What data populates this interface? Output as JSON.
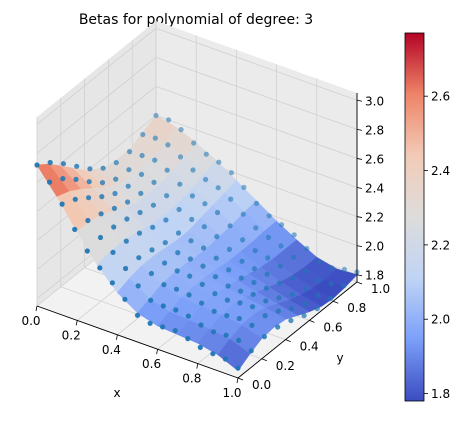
{
  "chart_data": {
    "type": "surface3d",
    "title": "Betas for polynomial of degree: 3",
    "xlabel": "x",
    "ylabel": "y",
    "xlim": [
      0.0,
      1.0
    ],
    "ylim": [
      0.0,
      1.0
    ],
    "zlim": [
      1.75,
      3.05
    ],
    "x_ticks": [
      "0.0",
      "0.2",
      "0.4",
      "0.6",
      "0.8",
      "1.0"
    ],
    "y_ticks": [
      "0.0",
      "0.2",
      "0.4",
      "0.6",
      "0.8",
      "1.0"
    ],
    "z_ticks": [
      "1.8",
      "2.0",
      "2.2",
      "2.4",
      "2.6",
      "2.8",
      "3.0"
    ],
    "x_tick_values": [
      0.0,
      0.2,
      0.4,
      0.6,
      0.8,
      1.0
    ],
    "y_tick_values": [
      0.0,
      0.2,
      0.4,
      0.6,
      0.8,
      1.0
    ],
    "z_tick_values": [
      1.8,
      2.0,
      2.2,
      2.4,
      2.6,
      2.8,
      3.0
    ],
    "grid": true,
    "colormap": "coolwarm",
    "colormap_stops": [
      "#3b4cc0",
      "#7b9ff9",
      "#c0d4f5",
      "#dddcdc",
      "#f2cbb7",
      "#ee8468",
      "#b40426"
    ],
    "colorbar": {
      "range": [
        1.78,
        2.77
      ],
      "ticks": [
        "1.8",
        "2.0",
        "2.2",
        "2.4",
        "2.6"
      ],
      "tick_values": [
        1.8,
        2.0,
        2.2,
        2.4,
        2.6
      ]
    },
    "scatter_color": "#1f77b4",
    "grid_x": [
      0.0,
      0.1,
      0.2,
      0.3,
      0.4,
      0.5,
      0.6,
      0.7,
      0.8,
      0.9,
      1.0
    ],
    "grid_y": [
      0.0,
      0.1,
      0.2,
      0.3,
      0.4,
      0.5,
      0.6,
      0.7,
      0.8,
      0.9,
      1.0
    ],
    "surface_z": [
      [
        2.72,
        2.66,
        2.58,
        2.5,
        2.42,
        2.36,
        2.32,
        2.31,
        2.32,
        2.36,
        2.4
      ],
      [
        2.55,
        2.52,
        2.47,
        2.41,
        2.35,
        2.3,
        2.28,
        2.28,
        2.3,
        2.33,
        2.37
      ],
      [
        2.36,
        2.36,
        2.34,
        2.3,
        2.26,
        2.23,
        2.22,
        2.23,
        2.25,
        2.28,
        2.31
      ],
      [
        2.18,
        2.2,
        2.2,
        2.19,
        2.17,
        2.15,
        2.15,
        2.16,
        2.18,
        2.21,
        2.24
      ],
      [
        2.04,
        2.07,
        2.09,
        2.09,
        2.08,
        2.07,
        2.07,
        2.09,
        2.11,
        2.13,
        2.15
      ],
      [
        1.95,
        1.98,
        2.01,
        2.02,
        2.02,
        2.01,
        2.01,
        2.02,
        2.03,
        2.05,
        2.06
      ],
      [
        1.91,
        1.94,
        1.97,
        1.98,
        1.98,
        1.97,
        1.96,
        1.96,
        1.96,
        1.97,
        1.97
      ],
      [
        1.9,
        1.93,
        1.96,
        1.97,
        1.96,
        1.94,
        1.92,
        1.9,
        1.89,
        1.89,
        1.89
      ],
      [
        1.89,
        1.92,
        1.95,
        1.96,
        1.94,
        1.91,
        1.88,
        1.85,
        1.83,
        1.82,
        1.82
      ],
      [
        1.86,
        1.9,
        1.93,
        1.94,
        1.92,
        1.88,
        1.84,
        1.81,
        1.79,
        1.78,
        1.79
      ],
      [
        1.8,
        1.85,
        1.89,
        1.9,
        1.89,
        1.85,
        1.81,
        1.78,
        1.77,
        1.78,
        1.8
      ]
    ]
  }
}
